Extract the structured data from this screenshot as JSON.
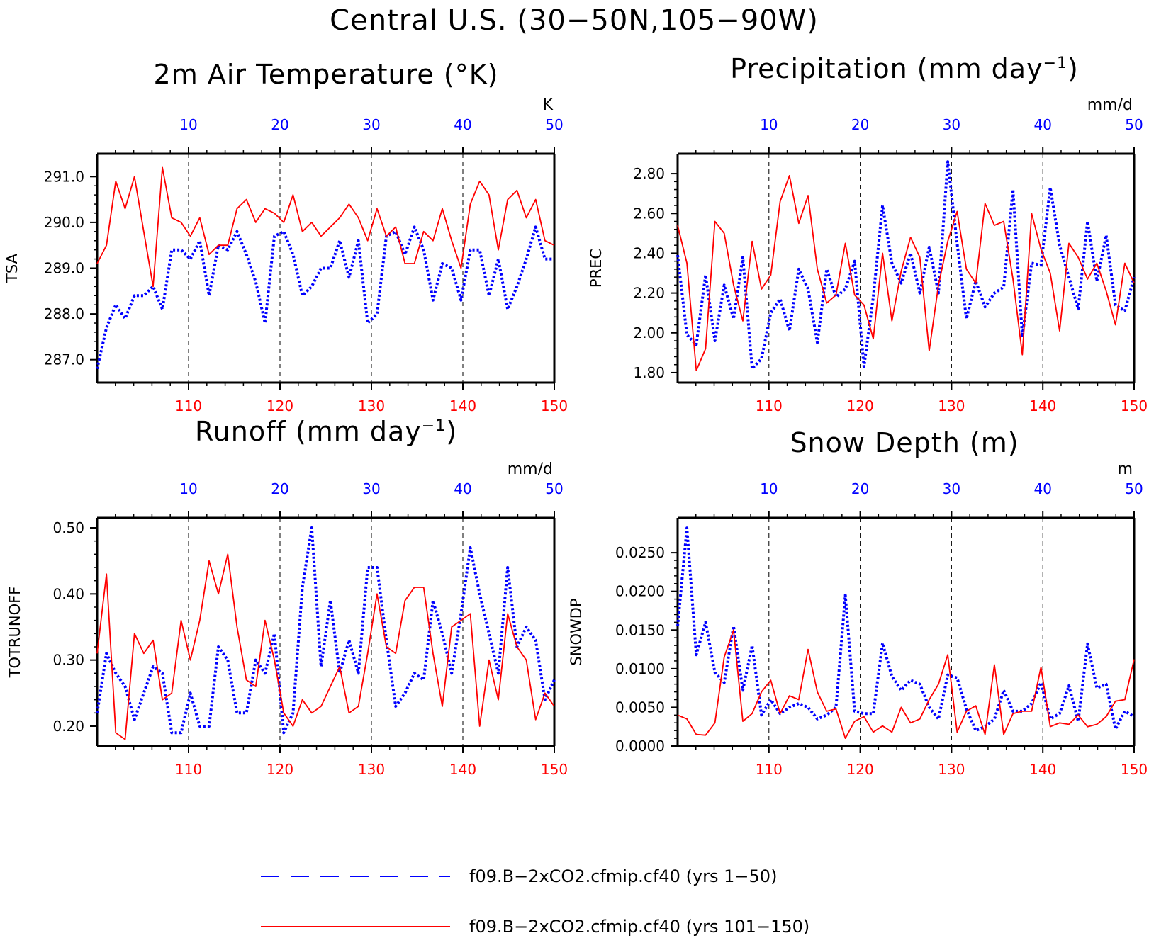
{
  "title": "Central U.S. (30−50N,105−90W)",
  "colors": {
    "early": "#0000ff",
    "late": "#ff0000",
    "axis": "#000000"
  },
  "legend": [
    {
      "label": "f09.B−2xCO2.cfmip.cf40 (yrs 1−50)",
      "color": "#0000ff",
      "style": "dashed"
    },
    {
      "label": "f09.B−2xCO2.cfmip.cf40 (yrs 101−150)",
      "color": "#ff0000",
      "style": "solid"
    }
  ],
  "chart_data": [
    {
      "type": "line",
      "title_main": "2m Air Temperature (°K)",
      "title_sup": "",
      "title_tail": "",
      "ylabel": "TSA",
      "units": "K",
      "ylim": [
        286.5,
        291.5
      ],
      "yticks": [
        287.0,
        288.0,
        289.0,
        290.0,
        291.0
      ],
      "ytick_labels": [
        "287.0",
        "288.0",
        "289.0",
        "290.0",
        "291.0"
      ],
      "x_top_ticks": [
        "10",
        "20",
        "30",
        "40",
        "50"
      ],
      "x_bottom_ticks": [
        "110",
        "120",
        "130",
        "140",
        "150"
      ],
      "grid": "vertical dashed at 10-year marks",
      "series": [
        {
          "key": "yrs_1_50",
          "color": "#0000ff",
          "style": "dotted",
          "values": [
            286.8,
            287.7,
            288.2,
            287.9,
            288.4,
            288.4,
            288.6,
            288.1,
            289.4,
            289.4,
            289.2,
            289.6,
            288.4,
            289.5,
            289.4,
            289.8,
            289.3,
            288.7,
            287.8,
            289.7,
            289.8,
            289.3,
            288.4,
            288.6,
            289.0,
            289.0,
            289.6,
            288.8,
            289.6,
            287.8,
            288.0,
            289.7,
            289.8,
            289.3,
            289.9,
            289.4,
            288.3,
            289.1,
            289.0,
            288.3,
            289.4,
            289.4,
            288.4,
            289.2,
            288.1,
            288.6,
            289.2,
            289.9,
            289.2,
            289.2
          ]
        },
        {
          "key": "yrs_101_150",
          "color": "#ff0000",
          "style": "solid",
          "values": [
            289.1,
            289.5,
            290.9,
            290.3,
            291.0,
            289.8,
            288.6,
            291.2,
            290.1,
            290.0,
            289.7,
            290.1,
            289.3,
            289.5,
            289.5,
            290.3,
            290.5,
            290.0,
            290.3,
            290.2,
            290.0,
            290.6,
            289.8,
            290.0,
            289.7,
            289.9,
            290.1,
            290.4,
            290.1,
            289.6,
            290.3,
            289.7,
            289.9,
            289.1,
            289.1,
            289.8,
            289.6,
            290.3,
            289.6,
            289.0,
            290.4,
            290.9,
            290.6,
            289.4,
            290.5,
            290.7,
            290.1,
            290.5,
            289.6,
            289.5
          ]
        }
      ]
    },
    {
      "type": "line",
      "title_main": "Precipitation (mm day",
      "title_sup": "−1",
      "title_tail": ")",
      "ylabel": "PREC",
      "units": "mm/d",
      "ylim": [
        1.75,
        2.9
      ],
      "yticks": [
        1.8,
        2.0,
        2.2,
        2.4,
        2.6,
        2.8
      ],
      "ytick_labels": [
        "1.80",
        "2.00",
        "2.20",
        "2.40",
        "2.60",
        "2.80"
      ],
      "x_top_ticks": [
        "10",
        "20",
        "30",
        "40",
        "50"
      ],
      "x_bottom_ticks": [
        "110",
        "120",
        "130",
        "140",
        "150"
      ],
      "grid": "vertical dashed at 10-year marks",
      "series": [
        {
          "key": "yrs_1_50",
          "color": "#0000ff",
          "style": "dotted",
          "values": [
            2.39,
            1.99,
            1.94,
            2.29,
            1.96,
            2.24,
            2.07,
            2.38,
            1.82,
            1.87,
            2.1,
            2.17,
            2.01,
            2.32,
            2.22,
            1.95,
            2.32,
            2.18,
            2.22,
            2.36,
            1.83,
            2.18,
            2.64,
            2.35,
            2.25,
            2.4,
            2.2,
            2.43,
            2.2,
            2.86,
            2.45,
            2.07,
            2.26,
            2.13,
            2.2,
            2.23,
            2.72,
            1.98,
            2.35,
            2.34,
            2.73,
            2.44,
            2.28,
            2.12,
            2.56,
            2.26,
            2.49,
            2.14,
            2.11,
            2.28
          ]
        },
        {
          "key": "yrs_101_150",
          "color": "#ff0000",
          "style": "solid",
          "values": [
            2.54,
            2.35,
            1.81,
            1.92,
            2.56,
            2.5,
            2.24,
            2.06,
            2.46,
            2.22,
            2.29,
            2.66,
            2.79,
            2.55,
            2.69,
            2.32,
            2.15,
            2.19,
            2.45,
            2.19,
            2.14,
            1.97,
            2.4,
            2.06,
            2.31,
            2.48,
            2.38,
            1.91,
            2.24,
            2.46,
            2.61,
            2.32,
            2.25,
            2.65,
            2.54,
            2.56,
            2.27,
            1.89,
            2.6,
            2.42,
            2.3,
            2.01,
            2.45,
            2.38,
            2.27,
            2.35,
            2.21,
            2.04,
            2.35,
            2.25
          ]
        }
      ]
    },
    {
      "type": "line",
      "title_main": "Runoff (mm day",
      "title_sup": "−1",
      "title_tail": ")",
      "ylabel": "TOTRUNOFF",
      "units": "mm/d",
      "ylim": [
        0.17,
        0.515
      ],
      "yticks": [
        0.2,
        0.3,
        0.4,
        0.5
      ],
      "ytick_labels": [
        "0.20",
        "0.30",
        "0.40",
        "0.50"
      ],
      "x_top_ticks": [
        "10",
        "20",
        "30",
        "40",
        "50"
      ],
      "x_bottom_ticks": [
        "110",
        "120",
        "130",
        "140",
        "150"
      ],
      "grid": "vertical dashed at 10-year marks",
      "series": [
        {
          "key": "yrs_1_50",
          "color": "#0000ff",
          "style": "dotted",
          "values": [
            0.22,
            0.31,
            0.28,
            0.26,
            0.21,
            0.25,
            0.29,
            0.28,
            0.19,
            0.19,
            0.25,
            0.2,
            0.2,
            0.32,
            0.3,
            0.22,
            0.22,
            0.3,
            0.28,
            0.34,
            0.19,
            0.22,
            0.41,
            0.5,
            0.29,
            0.39,
            0.28,
            0.33,
            0.28,
            0.44,
            0.44,
            0.33,
            0.23,
            0.25,
            0.28,
            0.27,
            0.39,
            0.34,
            0.28,
            0.37,
            0.47,
            0.4,
            0.34,
            0.28,
            0.44,
            0.32,
            0.35,
            0.33,
            0.24,
            0.27
          ]
        },
        {
          "key": "yrs_101_150",
          "color": "#ff0000",
          "style": "solid",
          "values": [
            0.31,
            0.43,
            0.19,
            0.18,
            0.34,
            0.31,
            0.33,
            0.24,
            0.25,
            0.36,
            0.3,
            0.36,
            0.45,
            0.4,
            0.46,
            0.35,
            0.27,
            0.26,
            0.36,
            0.3,
            0.22,
            0.2,
            0.24,
            0.22,
            0.23,
            0.26,
            0.29,
            0.22,
            0.23,
            0.31,
            0.4,
            0.32,
            0.31,
            0.39,
            0.41,
            0.41,
            0.31,
            0.23,
            0.35,
            0.36,
            0.37,
            0.2,
            0.3,
            0.24,
            0.37,
            0.32,
            0.3,
            0.21,
            0.25,
            0.23
          ]
        }
      ]
    },
    {
      "type": "line",
      "title_main": "Snow Depth (m)",
      "title_sup": "",
      "title_tail": "",
      "ylabel": "SNOWDP",
      "units": "m",
      "ylim": [
        0.0,
        0.0295
      ],
      "yticks": [
        0.0,
        0.005,
        0.01,
        0.015,
        0.02,
        0.025
      ],
      "ytick_labels": [
        "0.0000",
        "0.0050",
        "0.0100",
        "0.0150",
        "0.0200",
        "0.0250"
      ],
      "x_top_ticks": [
        "10",
        "20",
        "30",
        "40",
        "50"
      ],
      "x_bottom_ticks": [
        "110",
        "120",
        "130",
        "140",
        "150"
      ],
      "grid": "vertical dashed at 10-year marks",
      "series": [
        {
          "key": "yrs_1_50",
          "color": "#0000ff",
          "style": "dotted",
          "values": [
            0.0155,
            0.0282,
            0.0118,
            0.016,
            0.0095,
            0.0082,
            0.0155,
            0.0072,
            0.013,
            0.004,
            0.006,
            0.0042,
            0.005,
            0.0055,
            0.005,
            0.0035,
            0.004,
            0.005,
            0.0195,
            0.0045,
            0.0042,
            0.0042,
            0.0133,
            0.009,
            0.0072,
            0.0085,
            0.008,
            0.005,
            0.0035,
            0.0092,
            0.0088,
            0.0048,
            0.002,
            0.0025,
            0.0035,
            0.0072,
            0.0045,
            0.0045,
            0.0055,
            0.0082,
            0.0035,
            0.0042,
            0.0078,
            0.0032,
            0.0132,
            0.0075,
            0.008,
            0.0022,
            0.0045,
            0.0038
          ]
        },
        {
          "key": "yrs_101_150",
          "color": "#ff0000",
          "style": "solid",
          "values": [
            0.004,
            0.0035,
            0.0015,
            0.0014,
            0.003,
            0.0115,
            0.015,
            0.0032,
            0.0042,
            0.007,
            0.0085,
            0.0042,
            0.0065,
            0.006,
            0.0125,
            0.007,
            0.0045,
            0.0048,
            0.001,
            0.0032,
            0.0038,
            0.0018,
            0.0026,
            0.0018,
            0.005,
            0.003,
            0.0035,
            0.006,
            0.008,
            0.0118,
            0.0018,
            0.0045,
            0.0052,
            0.0015,
            0.0105,
            0.0015,
            0.0042,
            0.0045,
            0.0045,
            0.0102,
            0.0025,
            0.003,
            0.0028,
            0.004,
            0.0025,
            0.0028,
            0.0038,
            0.0058,
            0.006,
            0.0112
          ]
        }
      ]
    }
  ]
}
